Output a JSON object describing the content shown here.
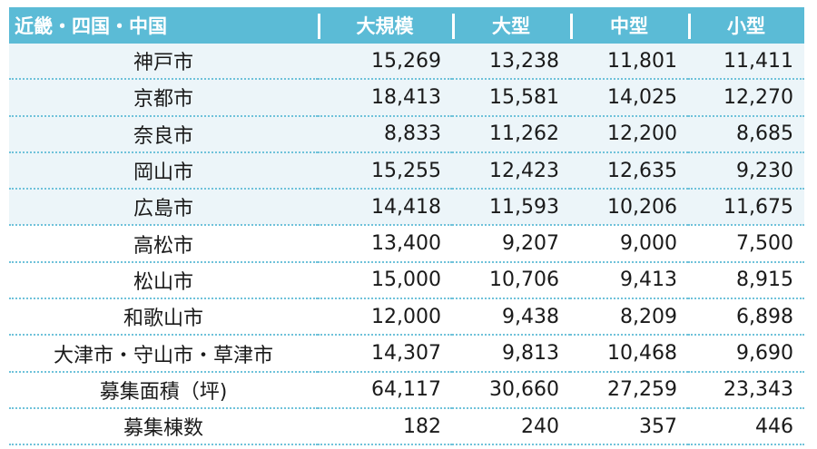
{
  "table": {
    "headers": [
      "近畿・四国・中国",
      "大規模",
      "大型",
      "中型",
      "小型"
    ],
    "rows": [
      {
        "name": "神戸市",
        "values": [
          "15,269",
          "13,238",
          "11,801",
          "11,411"
        ]
      },
      {
        "name": "京都市",
        "values": [
          "18,413",
          "15,581",
          "14,025",
          "12,270"
        ]
      },
      {
        "name": "奈良市",
        "values": [
          "8,833",
          "11,262",
          "12,200",
          "8,685"
        ]
      },
      {
        "name": "岡山市",
        "values": [
          "15,255",
          "12,423",
          "12,635",
          "9,230"
        ]
      },
      {
        "name": "広島市",
        "values": [
          "14,418",
          "11,593",
          "10,206",
          "11,675"
        ]
      },
      {
        "name": "高松市",
        "values": [
          "13,400",
          "9,207",
          "9,000",
          "7,500"
        ]
      },
      {
        "name": "松山市",
        "values": [
          "15,000",
          "10,706",
          "9,413",
          "8,915"
        ]
      },
      {
        "name": "和歌山市",
        "values": [
          "12,000",
          "9,438",
          "8,209",
          "6,898"
        ]
      },
      {
        "name": "大津市・守山市・草津市",
        "values": [
          "14,307",
          "9,813",
          "10,468",
          "9,690"
        ]
      },
      {
        "name": "募集面積（坪)",
        "values": [
          "64,117",
          "30,660",
          "27,259",
          "23,343"
        ]
      },
      {
        "name": "募集棟数",
        "values": [
          "182",
          "240",
          "357",
          "446"
        ]
      }
    ]
  },
  "colors": {
    "header_bg": "#5bbbd6",
    "row_shade": "#ecf5f9",
    "divider": "#6fc2da"
  }
}
